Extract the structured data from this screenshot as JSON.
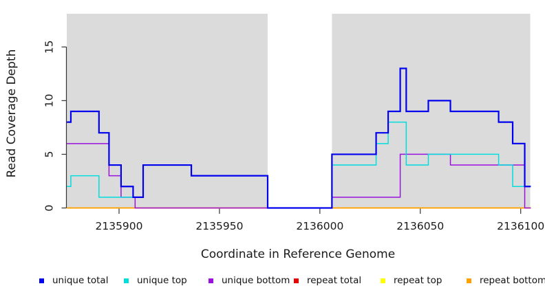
{
  "figure": {
    "plot_background": "#DBDBDB",
    "page_background": "#ffffff",
    "axis_color": "#333333",
    "text_color": "#1a1a1a"
  },
  "chart_data": {
    "type": "line",
    "subtype": "step",
    "title": "",
    "xlabel": "Coordinate in Reference Genome",
    "ylabel": "Read Coverage Depth",
    "xlim": [
      2135874,
      2136105
    ],
    "ylim": [
      0,
      18.1
    ],
    "x_ticks": [
      2135900,
      2135950,
      2136000,
      2136050,
      2136100
    ],
    "y_ticks": [
      0,
      5,
      10,
      15
    ],
    "grid": false,
    "gap_region": {
      "x_start": 2135974,
      "x_end": 2136006,
      "color": "#ffffff",
      "note": "no-data mask band"
    },
    "legend_position": "bottom",
    "draw_order": [
      3,
      4,
      5,
      2,
      1,
      0
    ],
    "series": [
      {
        "name": "unique total",
        "color": "#0000EE",
        "line_width": 2.2,
        "steps": [
          [
            2135874,
            8
          ],
          [
            2135876,
            9
          ],
          [
            2135890,
            7
          ],
          [
            2135895,
            4
          ],
          [
            2135901,
            2
          ],
          [
            2135907,
            1
          ],
          [
            2135912,
            4
          ],
          [
            2135936,
            3
          ],
          [
            2135974,
            0
          ],
          [
            2136006,
            5
          ],
          [
            2136028,
            7
          ],
          [
            2136034,
            9
          ],
          [
            2136040,
            13
          ],
          [
            2136043,
            9
          ],
          [
            2136054,
            10
          ],
          [
            2136065,
            9
          ],
          [
            2136089,
            8
          ],
          [
            2136096,
            6
          ],
          [
            2136102,
            2
          ]
        ]
      },
      {
        "name": "unique top",
        "color": "#00DDDD",
        "line_width": 1.5,
        "steps": [
          [
            2135874,
            2
          ],
          [
            2135876,
            3
          ],
          [
            2135890,
            1
          ],
          [
            2135912,
            4
          ],
          [
            2135936,
            3
          ],
          [
            2135974,
            0
          ],
          [
            2136006,
            4
          ],
          [
            2136028,
            6
          ],
          [
            2136034,
            8
          ],
          [
            2136043,
            4
          ],
          [
            2136054,
            5
          ],
          [
            2136089,
            4
          ],
          [
            2136096,
            2
          ]
        ]
      },
      {
        "name": "unique bottom",
        "color": "#9911DD",
        "line_width": 1.5,
        "steps": [
          [
            2135874,
            6
          ],
          [
            2135895,
            3
          ],
          [
            2135901,
            1
          ],
          [
            2135908,
            0
          ],
          [
            2136006,
            1
          ],
          [
            2136040,
            5
          ],
          [
            2136065,
            4
          ],
          [
            2136102,
            0
          ]
        ]
      },
      {
        "name": "repeat total",
        "color": "#E60000",
        "line_width": 1.2,
        "steps": [
          [
            2135874,
            0
          ]
        ]
      },
      {
        "name": "repeat top",
        "color": "#FFFF00",
        "line_width": 1.2,
        "steps": [
          [
            2135874,
            0
          ]
        ]
      },
      {
        "name": "repeat bottom",
        "color": "#FFA200",
        "line_width": 1.8,
        "steps": [
          [
            2135874,
            0
          ]
        ]
      }
    ]
  }
}
